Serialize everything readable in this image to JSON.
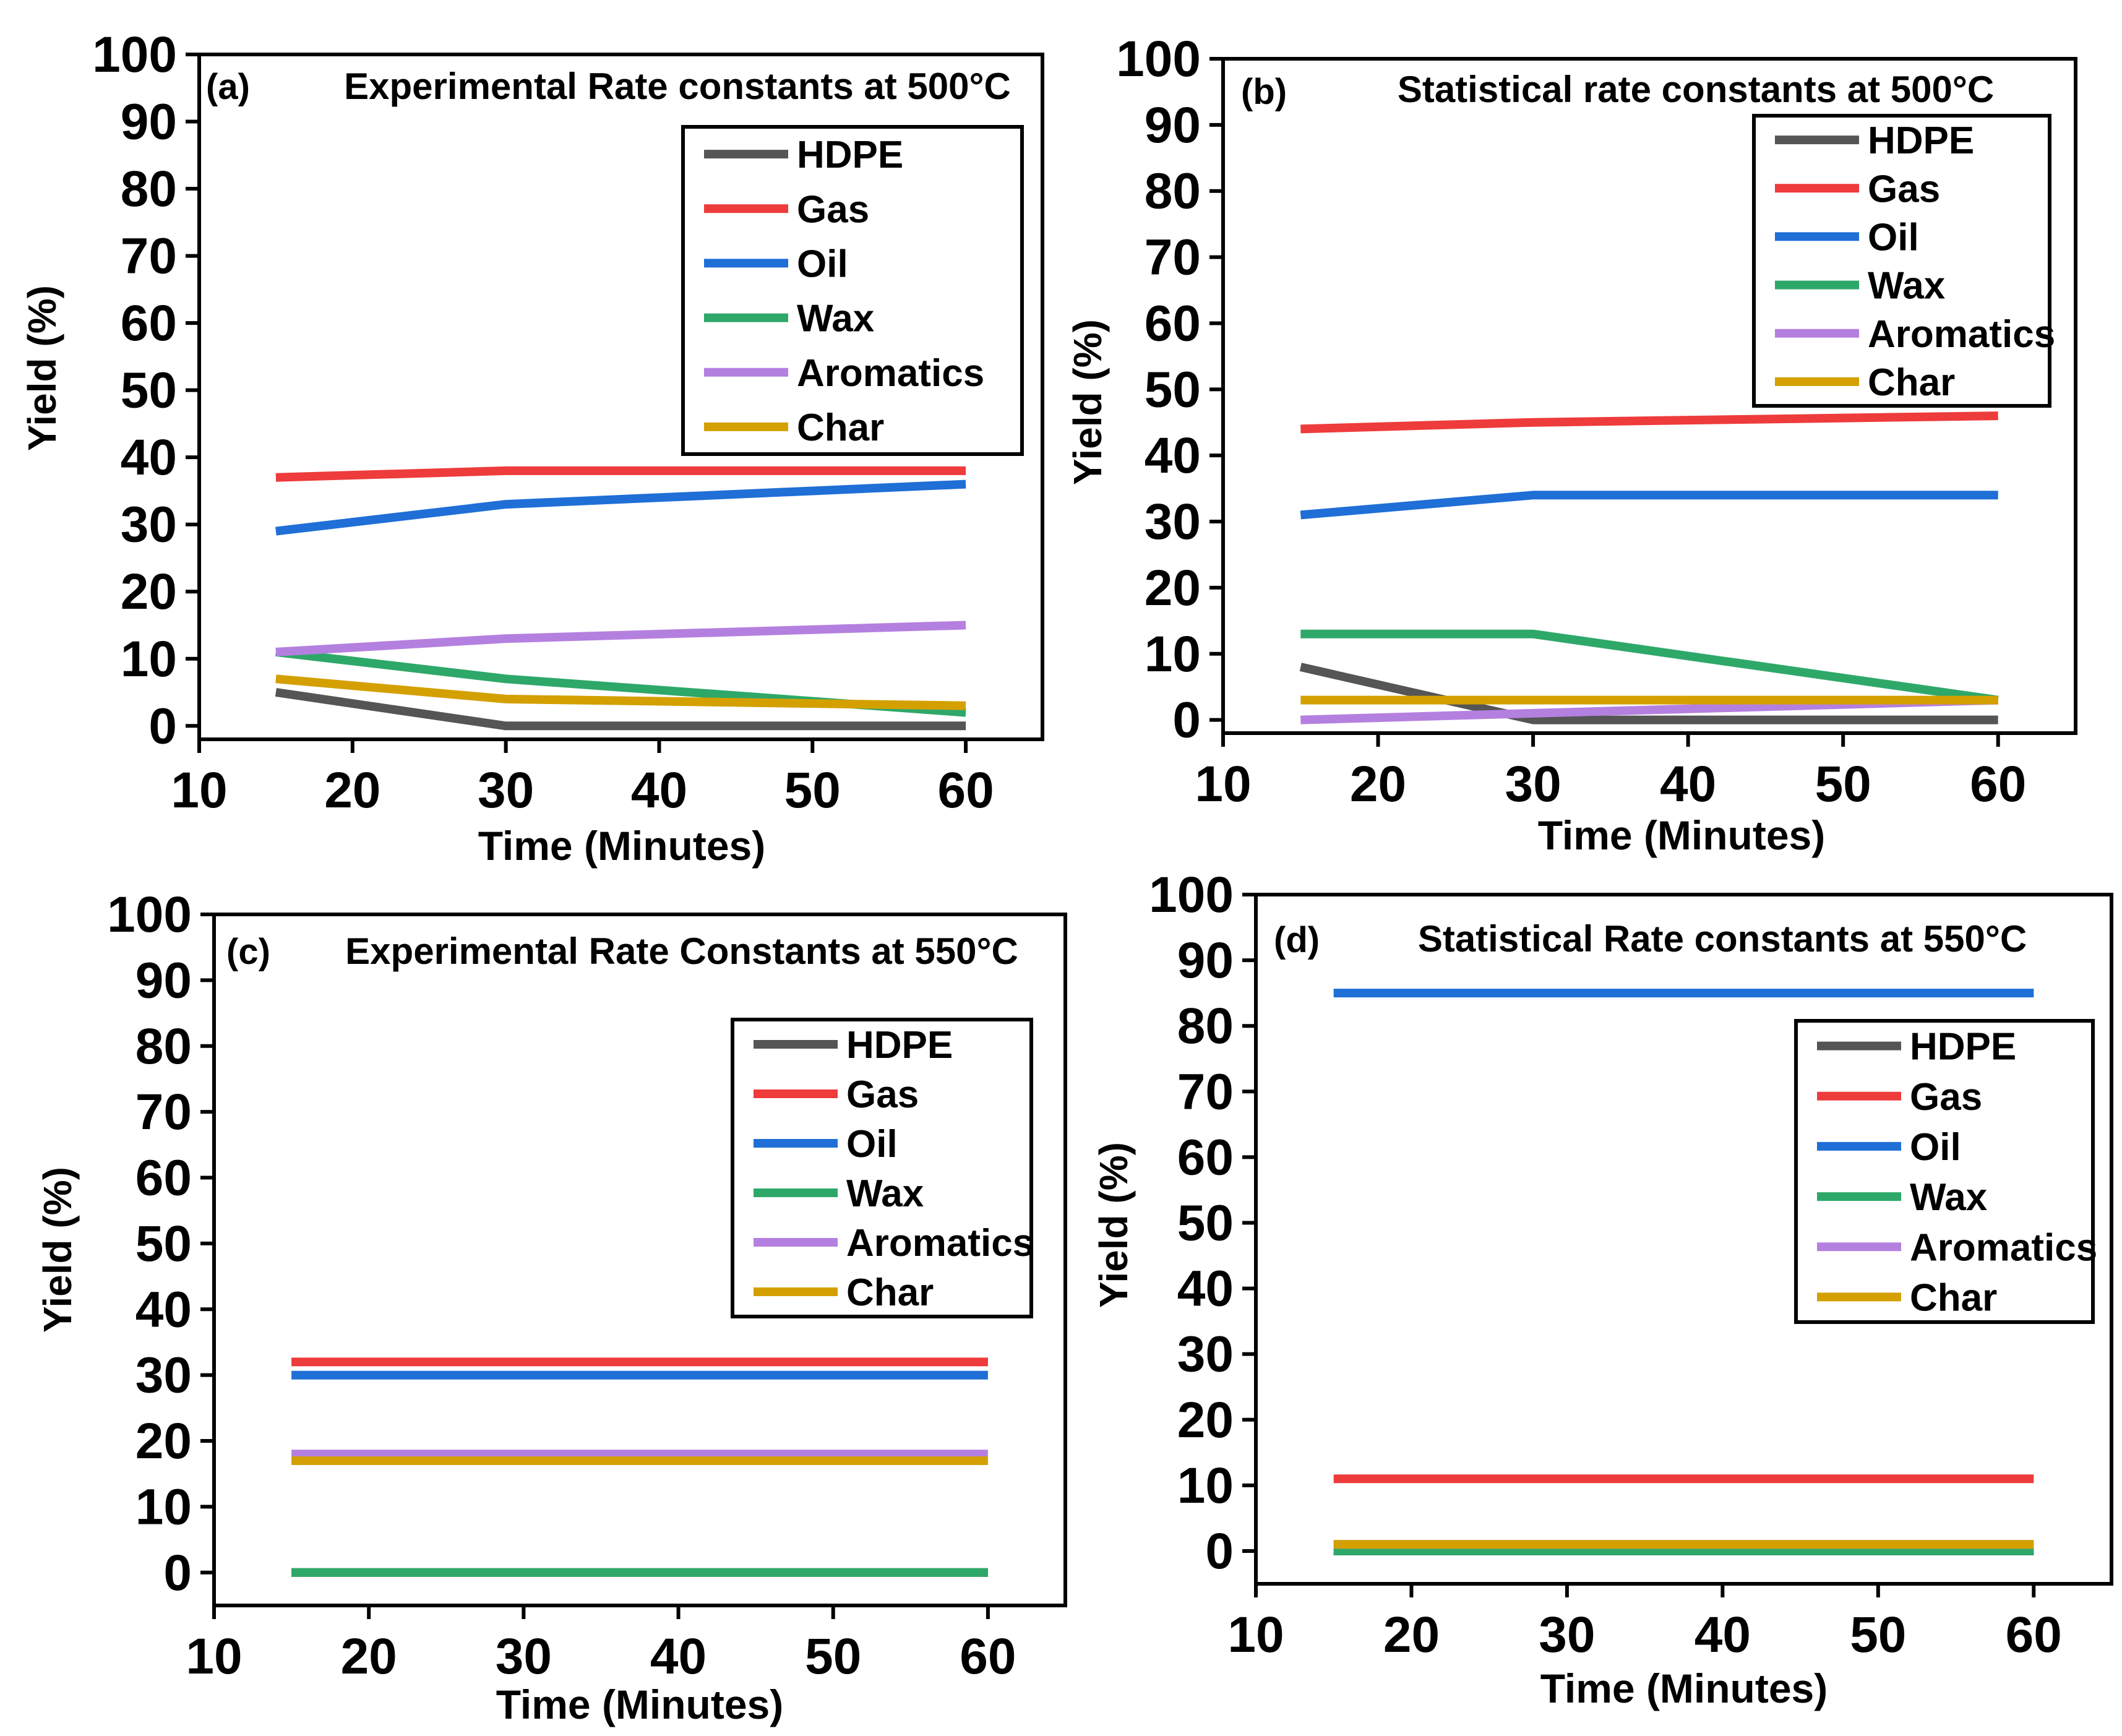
{
  "chart_data": [
    {
      "type": "line",
      "panel": "(a)",
      "title": "Experimental Rate constants at 500°C",
      "xlabel": "Time (Minutes)",
      "ylabel": "Yield (%)",
      "xlim": [
        10,
        65
      ],
      "ylim": [
        -2,
        100
      ],
      "xticks": [
        "10",
        "20",
        "30",
        "40",
        "50",
        "60"
      ],
      "yticks": [
        "0",
        "10",
        "20",
        "30",
        "40",
        "50",
        "60",
        "70",
        "80",
        "90",
        "100"
      ],
      "grid": false,
      "legend": "top-right",
      "x": [
        15,
        30,
        60
      ],
      "series": [
        {
          "name": "HDPE",
          "color": "#555555",
          "values": [
            5,
            0,
            0
          ]
        },
        {
          "name": "Gas",
          "color": "#ee3b3b",
          "values": [
            37,
            38,
            38
          ]
        },
        {
          "name": "Oil",
          "color": "#1f6fd6",
          "values": [
            29,
            33,
            36
          ]
        },
        {
          "name": "Wax",
          "color": "#2ea869",
          "values": [
            11,
            7,
            2
          ]
        },
        {
          "name": "Aromatics",
          "color": "#b480e0",
          "values": [
            11,
            13,
            15
          ]
        },
        {
          "name": "Char",
          "color": "#d4a000",
          "values": [
            7,
            4,
            3
          ]
        }
      ]
    },
    {
      "type": "line",
      "panel": "(b)",
      "title": "Statistical rate constants at 500°C",
      "xlabel": "Time (Minutes)",
      "ylabel": "Yield (%)",
      "xlim": [
        10,
        65
      ],
      "ylim": [
        -2,
        100
      ],
      "xticks": [
        "10",
        "20",
        "30",
        "40",
        "50",
        "60"
      ],
      "yticks": [
        "0",
        "10",
        "20",
        "30",
        "40",
        "50",
        "60",
        "70",
        "80",
        "90",
        "100"
      ],
      "grid": false,
      "legend": "top-right",
      "x": [
        15,
        30,
        60
      ],
      "series": [
        {
          "name": "HDPE",
          "color": "#555555",
          "values": [
            8,
            0,
            0
          ]
        },
        {
          "name": "Gas",
          "color": "#ee3b3b",
          "values": [
            44,
            45,
            46
          ]
        },
        {
          "name": "Oil",
          "color": "#1f6fd6",
          "values": [
            31,
            34,
            34
          ]
        },
        {
          "name": "Wax",
          "color": "#2ea869",
          "values": [
            13,
            13,
            3
          ]
        },
        {
          "name": "Aromatics",
          "color": "#b480e0",
          "values": [
            0,
            1,
            3
          ]
        },
        {
          "name": "Char",
          "color": "#d4a000",
          "values": [
            3,
            3,
            3
          ]
        }
      ]
    },
    {
      "type": "line",
      "panel": "(c)",
      "title": "Experimental Rate Constants at 550°C",
      "xlabel": "Time (Minutes)",
      "ylabel": "Yield (%)",
      "xlim": [
        10,
        65
      ],
      "ylim": [
        -5,
        100
      ],
      "xticks": [
        "10",
        "20",
        "30",
        "40",
        "50",
        "60"
      ],
      "yticks": [
        "0",
        "10",
        "20",
        "30",
        "40",
        "50",
        "60",
        "70",
        "80",
        "90",
        "100"
      ],
      "grid": false,
      "legend": "top-right",
      "x": [
        15,
        60
      ],
      "series": [
        {
          "name": "HDPE",
          "color": "#555555",
          "values": [
            0,
            0
          ]
        },
        {
          "name": "Gas",
          "color": "#ee3b3b",
          "values": [
            32,
            32
          ]
        },
        {
          "name": "Oil",
          "color": "#1f6fd6",
          "values": [
            30,
            30
          ]
        },
        {
          "name": "Wax",
          "color": "#2ea869",
          "values": [
            0,
            0
          ]
        },
        {
          "name": "Aromatics",
          "color": "#b480e0",
          "values": [
            18,
            18
          ]
        },
        {
          "name": "Char",
          "color": "#d4a000",
          "values": [
            17,
            17
          ]
        }
      ]
    },
    {
      "type": "line",
      "panel": "(d)",
      "title": "Statistical Rate constants at 550°C",
      "xlabel": "Time (Minutes)",
      "ylabel": "Yield (%)",
      "xlim": [
        10,
        65
      ],
      "ylim": [
        -5,
        100
      ],
      "xticks": [
        "10",
        "20",
        "30",
        "40",
        "50",
        "60"
      ],
      "yticks": [
        "0",
        "10",
        "20",
        "30",
        "40",
        "50",
        "60",
        "70",
        "80",
        "90",
        "100"
      ],
      "grid": false,
      "legend": "top-right",
      "x": [
        15,
        60
      ],
      "series": [
        {
          "name": "HDPE",
          "color": "#555555",
          "values": [
            0,
            0
          ]
        },
        {
          "name": "Gas",
          "color": "#ee3b3b",
          "values": [
            11,
            11
          ]
        },
        {
          "name": "Oil",
          "color": "#1f6fd6",
          "values": [
            85,
            85
          ]
        },
        {
          "name": "Wax",
          "color": "#2ea869",
          "values": [
            0,
            0
          ]
        },
        {
          "name": "Aromatics",
          "color": "#b480e0",
          "values": [
            1,
            1
          ]
        },
        {
          "name": "Char",
          "color": "#d4a000",
          "values": [
            1,
            1
          ]
        }
      ]
    }
  ]
}
